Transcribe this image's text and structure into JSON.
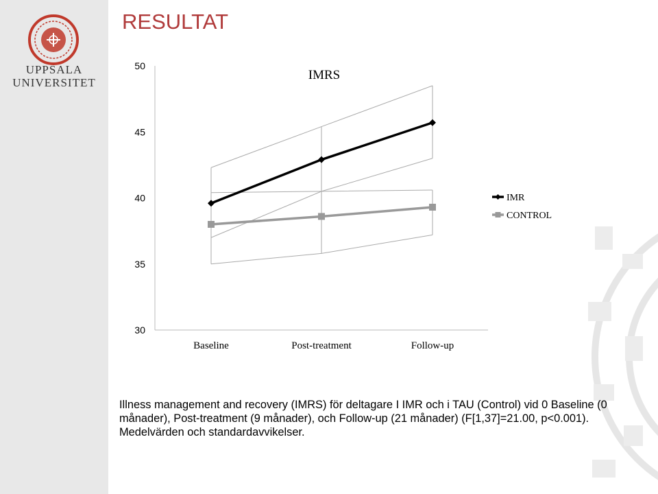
{
  "slide": {
    "title": "RESULTAT",
    "logo_lines": [
      "UPPSALA",
      "UNIVERSITET"
    ],
    "caption": "Illness management and recovery (IMRS) för deltagare I IMR och i TAU (Control) vid 0 Baseline (0 månader), Post-treatment (9 månader), och Follow-up (21 månader) (F[1,37]=21.00, p<0.001). Medelvärden och standardavvikelser."
  },
  "colors": {
    "title": "#b03a3a",
    "sidebar": "#e8e8e8",
    "imr": "#000000",
    "control": "#999999",
    "error_band": "#aaaaaa"
  },
  "chart_data": {
    "type": "line",
    "title": "IMRS",
    "categories": [
      "Baseline",
      "Post-treatment",
      "Follow-up"
    ],
    "ylim": [
      30,
      50
    ],
    "yticks": [
      30,
      35,
      40,
      45,
      50
    ],
    "grid": false,
    "legend_position": "right",
    "series": [
      {
        "name": "IMR",
        "values": [
          39.6,
          42.9,
          45.7
        ],
        "sd_upper": [
          42.3,
          45.4,
          48.5
        ],
        "sd_lower": [
          37.0,
          40.5,
          43.0
        ],
        "color": "#000000",
        "marker": "diamond"
      },
      {
        "name": "CONTROL",
        "values": [
          38.0,
          38.6,
          39.3
        ],
        "sd_upper": [
          40.4,
          40.5,
          40.6
        ],
        "sd_lower": [
          35.0,
          35.8,
          37.2
        ],
        "color": "#999999",
        "marker": "square"
      }
    ]
  }
}
